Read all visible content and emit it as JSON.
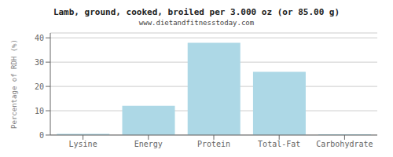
{
  "chart_data": {
    "type": "bar",
    "title": "Lamb, ground, cooked, broiled per 3.000 oz (or 85.00 g)",
    "subtitle": "www.dietandfitnesstoday.com",
    "categories": [
      "Lysine",
      "Energy",
      "Protein",
      "Total-Fat",
      "Carbohydrate"
    ],
    "values": [
      0.5,
      12,
      38,
      26,
      0.3
    ],
    "color": "#ADD8E6",
    "ylabel": "Percentage of RDH (%)",
    "ylim": [
      0,
      42
    ],
    "yticks": [
      0,
      10,
      20,
      30,
      40
    ],
    "grid": true
  }
}
